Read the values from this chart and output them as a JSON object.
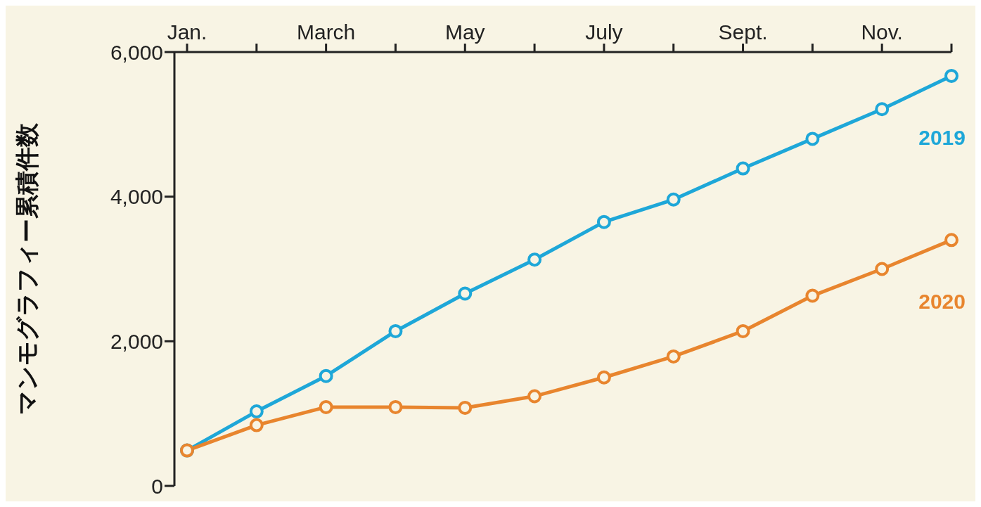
{
  "chart_data": {
    "type": "line",
    "ylabel": "マンモグラフィー累積件数",
    "categories": [
      "Jan.",
      null,
      "March",
      null,
      "May",
      null,
      "July",
      null,
      "Sept.",
      null,
      "Nov.",
      null
    ],
    "series": [
      {
        "name": "2019",
        "color": "#1ea7d8",
        "values": [
          490,
          1030,
          1520,
          2140,
          2660,
          3130,
          3650,
          3960,
          4390,
          4800,
          5210,
          5670
        ]
      },
      {
        "name": "2020",
        "color": "#e8852e",
        "values": [
          490,
          840,
          1090,
          1090,
          1080,
          1240,
          1500,
          1790,
          2140,
          2630,
          3000,
          3400
        ]
      }
    ],
    "ylim": [
      0,
      6000
    ],
    "yticks": [
      {
        "value": 0,
        "label": "0"
      },
      {
        "value": 2000,
        "label": "2,000"
      },
      {
        "value": 4000,
        "label": "4,000"
      },
      {
        "value": 6000,
        "label": "6,000"
      }
    ],
    "grid": false,
    "legend": false,
    "marker": "circle",
    "line_style": "solid"
  }
}
